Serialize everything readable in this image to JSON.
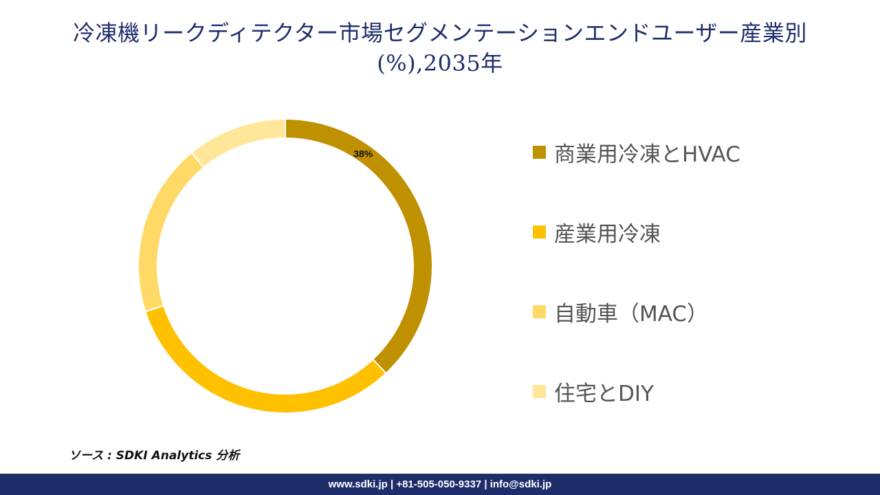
{
  "title": "冷凍機リークディテクター市場セグメンテーションエンドユーザー産業別(%),2035年",
  "source": "ソース : SDKI Analytics 分析",
  "footer": "www.sdki.jp | +81-505-050-9337 | info@sdki.jp",
  "chart_data": {
    "type": "pie",
    "style": "donut",
    "categories": [
      "商業用冷凍とHVAC",
      "産業用冷凍",
      "自動車（MAC）",
      "住宅とDIY"
    ],
    "values": [
      38,
      32,
      19,
      11
    ],
    "data_labels": [
      "38%",
      "",
      "",
      ""
    ],
    "colors": [
      "#bf9000",
      "#ffc000",
      "#ffd966",
      "#ffe699"
    ],
    "legend_position": "right",
    "start_angle": 0,
    "direction": "clockwise"
  }
}
